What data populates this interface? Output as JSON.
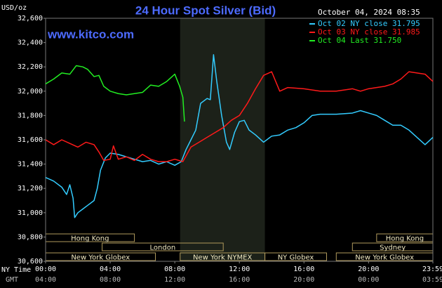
{
  "chart_data": {
    "type": "line",
    "title": "24 Hour Spot Silver (Bid)",
    "unit_label": "USD/oz",
    "timestamp": "October 04, 2024 08:35",
    "watermark": "www.kitco.com",
    "x_row_labels": [
      "NY Time",
      "GMT"
    ],
    "xlim": [
      0,
      23.983
    ],
    "xticks": [
      {
        "value": 0,
        "label": "00:00"
      },
      {
        "value": 4,
        "label": "04:00"
      },
      {
        "value": 8,
        "label": "08:00"
      },
      {
        "value": 12,
        "label": "12:00"
      },
      {
        "value": 16,
        "label": "16:00"
      },
      {
        "value": 20,
        "label": "20:00"
      },
      {
        "value": 23.983,
        "label": "23:59"
      }
    ],
    "gmt_labels": [
      "04:00",
      "08:00",
      "12:00",
      "16:00",
      "20:00",
      "00:00",
      "03:59"
    ],
    "ylim": [
      30600,
      32600
    ],
    "yticks": [
      {
        "value": 30600,
        "label": "30,600"
      },
      {
        "value": 30800,
        "label": "30,800"
      },
      {
        "value": 31000,
        "label": "31,000"
      },
      {
        "value": 31200,
        "label": "31,200"
      },
      {
        "value": 31400,
        "label": "31,400"
      },
      {
        "value": 31600,
        "label": "31,600"
      },
      {
        "value": 31800,
        "label": "31,800"
      },
      {
        "value": 32000,
        "label": "32,000"
      },
      {
        "value": 32200,
        "label": "32,200"
      },
      {
        "value": 32400,
        "label": "32,400"
      },
      {
        "value": 32600,
        "label": "32,600"
      }
    ],
    "highlight_range": [
      8.33,
      13.58
    ],
    "session_rows": [
      [
        {
          "name": "New York Globex",
          "start": 0,
          "end": 6.8
        },
        {
          "name": "New York NYMEX",
          "start": 8.33,
          "end": 13.58
        },
        {
          "name": "NY Globex",
          "start": 13.58,
          "end": 17.4
        },
        {
          "name": "New York Globex",
          "start": 18,
          "end": 23.983
        }
      ],
      [
        {
          "name": "London",
          "start": 3.5,
          "end": 11
        },
        {
          "name": "Sydney",
          "start": 19,
          "end": 23.983
        }
      ],
      [
        {
          "name": "Hong Kong",
          "start": 0,
          "end": 5.5
        },
        {
          "name": "Hong Kong",
          "start": 20.5,
          "end": 23.983
        }
      ]
    ],
    "series": [
      {
        "name": "Oct 02 NY close 31.795",
        "color": "#33ccff",
        "x": [
          0,
          0.5,
          1,
          1.3,
          1.5,
          1.7,
          1.8,
          2,
          2.3,
          2.6,
          3,
          3.2,
          3.4,
          3.7,
          4,
          4.5,
          5,
          5.5,
          6,
          6.5,
          7,
          7.5,
          8,
          8.4,
          8.7,
          9,
          9.3,
          9.6,
          10,
          10.2,
          10.4,
          10.6,
          10.9,
          11.2,
          11.4,
          11.7,
          12,
          12.3,
          12.6,
          13,
          13.5,
          14,
          14.5,
          15,
          15.5,
          16,
          16.5,
          17,
          18,
          19,
          19.5,
          20,
          20.5,
          21,
          21.5,
          22,
          22.5,
          23,
          23.5,
          23.983
        ],
        "values": [
          31290,
          31260,
          31210,
          31150,
          31230,
          31120,
          30960,
          31000,
          31030,
          31060,
          31100,
          31200,
          31350,
          31450,
          31490,
          31480,
          31460,
          31440,
          31420,
          31430,
          31400,
          31420,
          31390,
          31420,
          31520,
          31600,
          31680,
          31900,
          31940,
          31930,
          32300,
          32080,
          31800,
          31580,
          31520,
          31660,
          31750,
          31760,
          31680,
          31640,
          31580,
          31630,
          31640,
          31680,
          31700,
          31740,
          31800,
          31810,
          31810,
          31820,
          31840,
          31820,
          31800,
          31760,
          31720,
          31720,
          31680,
          31620,
          31560,
          31620
        ]
      },
      {
        "name": "Oct 03 NY close 31.985",
        "color": "#ff1a1a",
        "x": [
          0,
          0.5,
          1,
          1.5,
          2,
          2.5,
          3,
          3.3,
          3.6,
          4,
          4.2,
          4.5,
          5,
          5.5,
          6,
          6.5,
          7,
          7.5,
          8,
          8.5,
          9,
          9.5,
          10,
          10.5,
          11,
          11.5,
          12,
          12.5,
          13,
          13.5,
          14,
          14.5,
          15,
          16,
          17,
          18,
          19,
          19.5,
          20,
          20.5,
          21,
          21.5,
          22,
          22.5,
          23,
          23.5,
          23.983
        ],
        "values": [
          31600,
          31560,
          31600,
          31570,
          31540,
          31580,
          31560,
          31500,
          31430,
          31440,
          31550,
          31440,
          31460,
          31430,
          31480,
          31440,
          31420,
          31420,
          31440,
          31420,
          31540,
          31580,
          31620,
          31660,
          31700,
          31760,
          31800,
          31900,
          32020,
          32130,
          32160,
          32000,
          32030,
          32020,
          32000,
          32000,
          32020,
          32000,
          32020,
          32030,
          32040,
          32060,
          32100,
          32160,
          32150,
          32140,
          32080
        ]
      },
      {
        "name": "Oct 04 Last 31.750",
        "color": "#22ee22",
        "x": [
          0,
          0.5,
          1,
          1.5,
          1.9,
          2.3,
          2.6,
          3,
          3.3,
          3.6,
          4,
          4.5,
          5,
          5.5,
          6,
          6.5,
          7,
          7.5,
          8,
          8.3,
          8.5,
          8.6
        ],
        "values": [
          32060,
          32100,
          32150,
          32140,
          32210,
          32200,
          32180,
          32120,
          32130,
          32040,
          32000,
          31980,
          31970,
          31980,
          31990,
          32050,
          32040,
          32080,
          32140,
          32040,
          31950,
          31750
        ]
      }
    ]
  }
}
